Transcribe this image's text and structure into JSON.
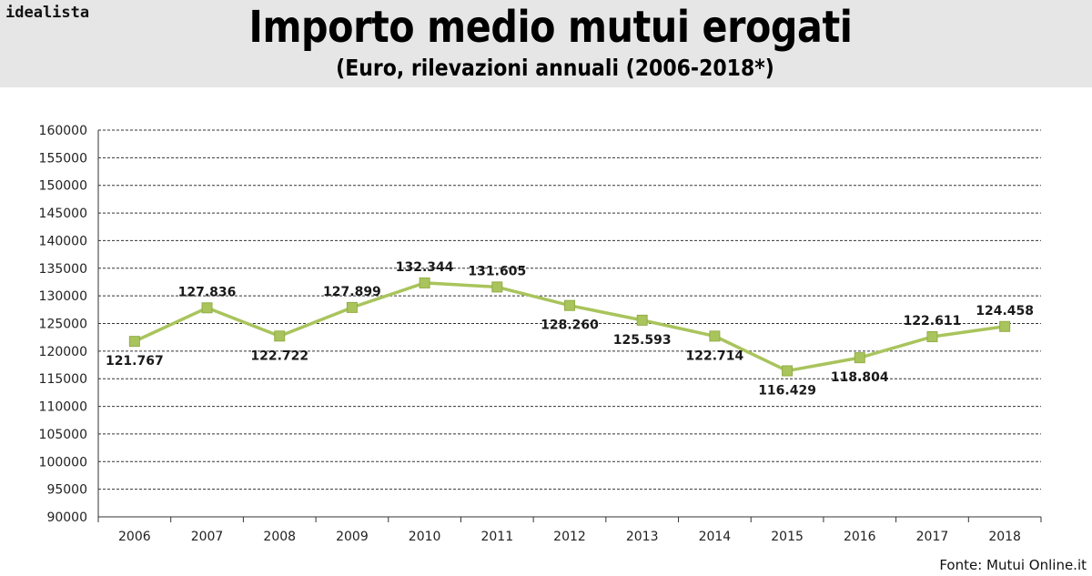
{
  "header": {
    "brand": "idealista",
    "title": "Importo medio mutui erogati",
    "subtitle": "(Euro, rilevazioni annuali (2006-2018*)"
  },
  "source": "Fonte: Mutui Online.it",
  "colors": {
    "header_bg": "#e6e6e6",
    "line": "#a9c45c",
    "marker": "#a9c45c",
    "grid": "#333333"
  },
  "chart_data": {
    "type": "line",
    "title": "Importo medio mutui erogati",
    "subtitle": "(Euro, rilevazioni annuali (2006-2018*)",
    "xlabel": "",
    "ylabel": "",
    "categories": [
      "2006",
      "2007",
      "2008",
      "2009",
      "2010",
      "2011",
      "2012",
      "2013",
      "2014",
      "2015",
      "2016",
      "2017",
      "2018"
    ],
    "values": [
      121767,
      127836,
      122722,
      127899,
      132344,
      131605,
      128260,
      125593,
      122714,
      116429,
      118804,
      122611,
      124458
    ],
    "data_labels": [
      "121.767",
      "127.836",
      "122.722",
      "127.899",
      "132.344",
      "131.605",
      "128.260",
      "125.593",
      "122.714",
      "116.429",
      "118.804",
      "122.611",
      "124.458"
    ],
    "label_position": [
      "below",
      "above",
      "below",
      "above",
      "above",
      "above",
      "below",
      "below",
      "below",
      "below",
      "below",
      "above",
      "above"
    ],
    "ylim": [
      90000,
      160000
    ],
    "yticks": [
      90000,
      95000,
      100000,
      105000,
      110000,
      115000,
      120000,
      125000,
      130000,
      135000,
      140000,
      145000,
      150000,
      155000,
      160000
    ],
    "ytick_labels": [
      "90000",
      "95000",
      "100000",
      "105000",
      "110000",
      "115000",
      "120000",
      "125000",
      "130000",
      "135000",
      "140000",
      "145000",
      "150000",
      "155000",
      "160000"
    ],
    "grid": true,
    "legend": "none"
  }
}
